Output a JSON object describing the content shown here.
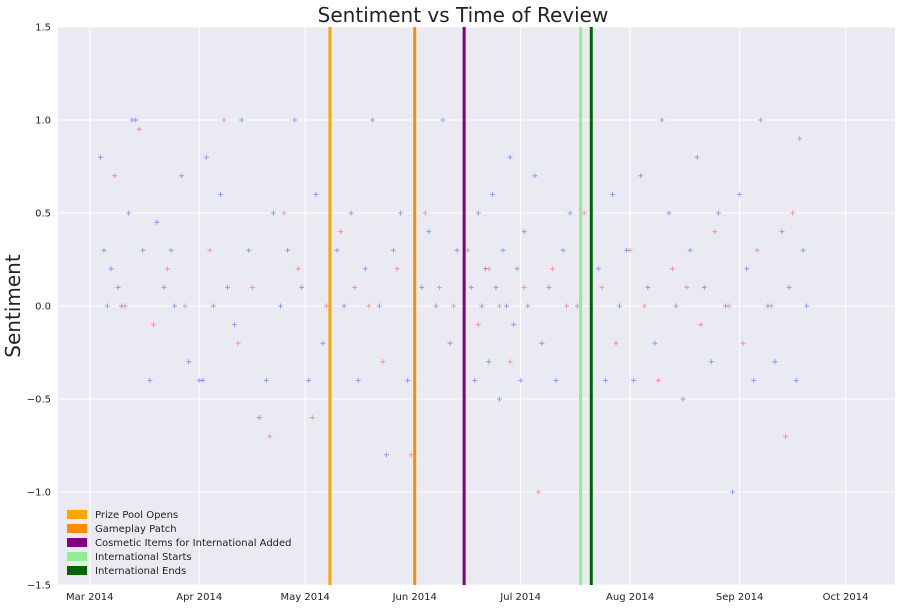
{
  "chart_data": {
    "type": "scatter",
    "title": "Sentiment vs Time of Review",
    "xlabel": "",
    "ylabel": "Sentiment",
    "xlim": [
      "2014-02-20",
      "2014-10-15"
    ],
    "ylim": [
      -1.5,
      1.5
    ],
    "grid": true,
    "legend_position": "lower-left",
    "x_ticks": [
      {
        "date": "2014-03-01",
        "label": "Mar 2014"
      },
      {
        "date": "2014-04-01",
        "label": "Apr 2014"
      },
      {
        "date": "2014-05-01",
        "label": "May 2014"
      },
      {
        "date": "2014-06-01",
        "label": "Jun 2014"
      },
      {
        "date": "2014-07-01",
        "label": "Jul 2014"
      },
      {
        "date": "2014-08-01",
        "label": "Aug 2014"
      },
      {
        "date": "2014-09-01",
        "label": "Sep 2014"
      },
      {
        "date": "2014-10-01",
        "label": "Oct 2014"
      }
    ],
    "y_ticks": [
      -1.5,
      -1.0,
      -0.5,
      0.0,
      0.5,
      1.0,
      1.5
    ],
    "y_tick_labels": [
      "−1.5",
      "−1.0",
      "−0.5",
      "0.0",
      "0.5",
      "1.0",
      "1.5"
    ],
    "events": [
      {
        "label": "Prize Pool Opens",
        "date": "2014-05-08",
        "color": "#ffa500"
      },
      {
        "label": "Gameplay Patch",
        "date": "2014-06-01",
        "color": "#ff8c00"
      },
      {
        "label": "Cosmetic Items for International Added",
        "date": "2014-06-15",
        "color": "#800080"
      },
      {
        "label": "International Starts",
        "date": "2014-07-18",
        "color": "#90ee90"
      },
      {
        "label": "International Ends",
        "date": "2014-07-21",
        "color": "#006400"
      }
    ],
    "series": [
      {
        "color": "#0000ff",
        "marker": "+",
        "points": [
          [
            "2014-03-04",
            0.8
          ],
          [
            "2014-03-05",
            0.3
          ],
          [
            "2014-03-06",
            0.0
          ],
          [
            "2014-03-07",
            0.2
          ],
          [
            "2014-03-09",
            0.1
          ],
          [
            "2014-03-10",
            0.0
          ],
          [
            "2014-03-12",
            0.5
          ],
          [
            "2014-03-13",
            1.0
          ],
          [
            "2014-03-14",
            1.0
          ],
          [
            "2014-03-16",
            0.3
          ],
          [
            "2014-03-18",
            -0.4
          ],
          [
            "2014-03-20",
            0.45
          ],
          [
            "2014-03-22",
            0.1
          ],
          [
            "2014-03-24",
            0.3
          ],
          [
            "2014-03-25",
            0.0
          ],
          [
            "2014-03-27",
            0.7
          ],
          [
            "2014-03-29",
            -0.3
          ],
          [
            "2014-04-01",
            -0.4
          ],
          [
            "2014-04-02",
            -0.4
          ],
          [
            "2014-04-03",
            0.8
          ],
          [
            "2014-04-05",
            0.0
          ],
          [
            "2014-04-07",
            0.6
          ],
          [
            "2014-04-09",
            0.1
          ],
          [
            "2014-04-11",
            -0.1
          ],
          [
            "2014-04-13",
            1.0
          ],
          [
            "2014-04-15",
            0.3
          ],
          [
            "2014-04-18",
            -0.6
          ],
          [
            "2014-04-20",
            -0.4
          ],
          [
            "2014-04-22",
            0.5
          ],
          [
            "2014-04-24",
            0.0
          ],
          [
            "2014-04-26",
            0.3
          ],
          [
            "2014-04-28",
            1.0
          ],
          [
            "2014-04-30",
            0.1
          ],
          [
            "2014-05-02",
            -0.4
          ],
          [
            "2014-05-04",
            0.6
          ],
          [
            "2014-05-06",
            -0.2
          ],
          [
            "2014-05-10",
            0.3
          ],
          [
            "2014-05-12",
            0.0
          ],
          [
            "2014-05-14",
            0.5
          ],
          [
            "2014-05-16",
            -0.4
          ],
          [
            "2014-05-18",
            0.2
          ],
          [
            "2014-05-20",
            1.0
          ],
          [
            "2014-05-22",
            0.0
          ],
          [
            "2014-05-24",
            -0.8
          ],
          [
            "2014-05-26",
            0.3
          ],
          [
            "2014-05-28",
            0.5
          ],
          [
            "2014-05-30",
            -0.4
          ],
          [
            "2014-06-03",
            0.1
          ],
          [
            "2014-06-05",
            0.4
          ],
          [
            "2014-06-07",
            0.0
          ],
          [
            "2014-06-09",
            1.0
          ],
          [
            "2014-06-11",
            -0.2
          ],
          [
            "2014-06-13",
            0.3
          ],
          [
            "2014-06-17",
            0.1
          ],
          [
            "2014-06-18",
            -0.4
          ],
          [
            "2014-06-19",
            0.5
          ],
          [
            "2014-06-20",
            0.0
          ],
          [
            "2014-06-21",
            0.2
          ],
          [
            "2014-06-22",
            -0.3
          ],
          [
            "2014-06-23",
            0.6
          ],
          [
            "2014-06-24",
            0.1
          ],
          [
            "2014-06-25",
            -0.5
          ],
          [
            "2014-06-26",
            0.3
          ],
          [
            "2014-06-27",
            0.0
          ],
          [
            "2014-06-28",
            0.8
          ],
          [
            "2014-06-29",
            -0.1
          ],
          [
            "2014-06-30",
            0.2
          ],
          [
            "2014-07-01",
            -0.4
          ],
          [
            "2014-07-02",
            0.4
          ],
          [
            "2014-07-03",
            0.0
          ],
          [
            "2014-07-05",
            0.7
          ],
          [
            "2014-07-07",
            -0.2
          ],
          [
            "2014-07-09",
            0.1
          ],
          [
            "2014-07-11",
            -0.4
          ],
          [
            "2014-07-13",
            0.3
          ],
          [
            "2014-07-15",
            0.5
          ],
          [
            "2014-07-17",
            0.0
          ],
          [
            "2014-07-23",
            0.2
          ],
          [
            "2014-07-25",
            -0.4
          ],
          [
            "2014-07-27",
            0.6
          ],
          [
            "2014-07-29",
            0.0
          ],
          [
            "2014-07-31",
            0.3
          ],
          [
            "2014-08-02",
            -0.4
          ],
          [
            "2014-08-04",
            0.7
          ],
          [
            "2014-08-06",
            0.1
          ],
          [
            "2014-08-08",
            -0.2
          ],
          [
            "2014-08-10",
            1.0
          ],
          [
            "2014-08-12",
            0.5
          ],
          [
            "2014-08-14",
            0.0
          ],
          [
            "2014-08-16",
            -0.5
          ],
          [
            "2014-08-18",
            0.3
          ],
          [
            "2014-08-20",
            0.8
          ],
          [
            "2014-08-22",
            0.1
          ],
          [
            "2014-08-24",
            -0.3
          ],
          [
            "2014-08-26",
            0.5
          ],
          [
            "2014-08-28",
            0.0
          ],
          [
            "2014-08-30",
            -1.0
          ],
          [
            "2014-09-01",
            0.6
          ],
          [
            "2014-09-03",
            0.2
          ],
          [
            "2014-09-05",
            -0.4
          ],
          [
            "2014-09-07",
            1.0
          ],
          [
            "2014-09-09",
            0.0
          ],
          [
            "2014-09-11",
            -0.3
          ],
          [
            "2014-09-13",
            0.4
          ],
          [
            "2014-09-15",
            0.1
          ],
          [
            "2014-09-17",
            -0.4
          ],
          [
            "2014-09-19",
            0.3
          ],
          [
            "2014-09-20",
            0.0
          ]
        ]
      },
      {
        "color": "#ff0000",
        "marker": "+",
        "points": [
          [
            "2014-03-08",
            0.7
          ],
          [
            "2014-03-11",
            0.0
          ],
          [
            "2014-03-15",
            0.95
          ],
          [
            "2014-03-19",
            -0.1
          ],
          [
            "2014-03-23",
            0.2
          ],
          [
            "2014-03-28",
            0.0
          ],
          [
            "2014-04-04",
            0.3
          ],
          [
            "2014-04-08",
            1.0
          ],
          [
            "2014-04-12",
            -0.2
          ],
          [
            "2014-04-16",
            0.1
          ],
          [
            "2014-04-21",
            -0.7
          ],
          [
            "2014-04-25",
            0.5
          ],
          [
            "2014-04-29",
            0.2
          ],
          [
            "2014-05-03",
            -0.6
          ],
          [
            "2014-05-07",
            0.0
          ],
          [
            "2014-05-11",
            0.4
          ],
          [
            "2014-05-15",
            0.1
          ],
          [
            "2014-05-19",
            0.0
          ],
          [
            "2014-05-23",
            -0.3
          ],
          [
            "2014-05-27",
            0.2
          ],
          [
            "2014-05-31",
            -0.8
          ],
          [
            "2014-06-04",
            0.5
          ],
          [
            "2014-06-08",
            0.1
          ],
          [
            "2014-06-12",
            0.0
          ],
          [
            "2014-06-16",
            0.3
          ],
          [
            "2014-06-19",
            -0.1
          ],
          [
            "2014-06-22",
            0.2
          ],
          [
            "2014-06-25",
            0.0
          ],
          [
            "2014-06-28",
            -0.3
          ],
          [
            "2014-07-02",
            0.1
          ],
          [
            "2014-07-06",
            -1.0
          ],
          [
            "2014-07-10",
            0.2
          ],
          [
            "2014-07-14",
            0.0
          ],
          [
            "2014-07-19",
            0.5
          ],
          [
            "2014-07-24",
            0.1
          ],
          [
            "2014-07-28",
            -0.2
          ],
          [
            "2014-08-01",
            0.3
          ],
          [
            "2014-08-05",
            0.0
          ],
          [
            "2014-08-09",
            -0.4
          ],
          [
            "2014-08-13",
            0.2
          ],
          [
            "2014-08-17",
            0.1
          ],
          [
            "2014-08-21",
            -0.1
          ],
          [
            "2014-08-25",
            0.4
          ],
          [
            "2014-08-29",
            0.0
          ],
          [
            "2014-09-02",
            -0.2
          ],
          [
            "2014-09-06",
            0.3
          ],
          [
            "2014-09-10",
            0.0
          ],
          [
            "2014-09-14",
            -0.7
          ],
          [
            "2014-09-16",
            0.5
          ],
          [
            "2014-09-18",
            0.9
          ]
        ]
      }
    ]
  }
}
